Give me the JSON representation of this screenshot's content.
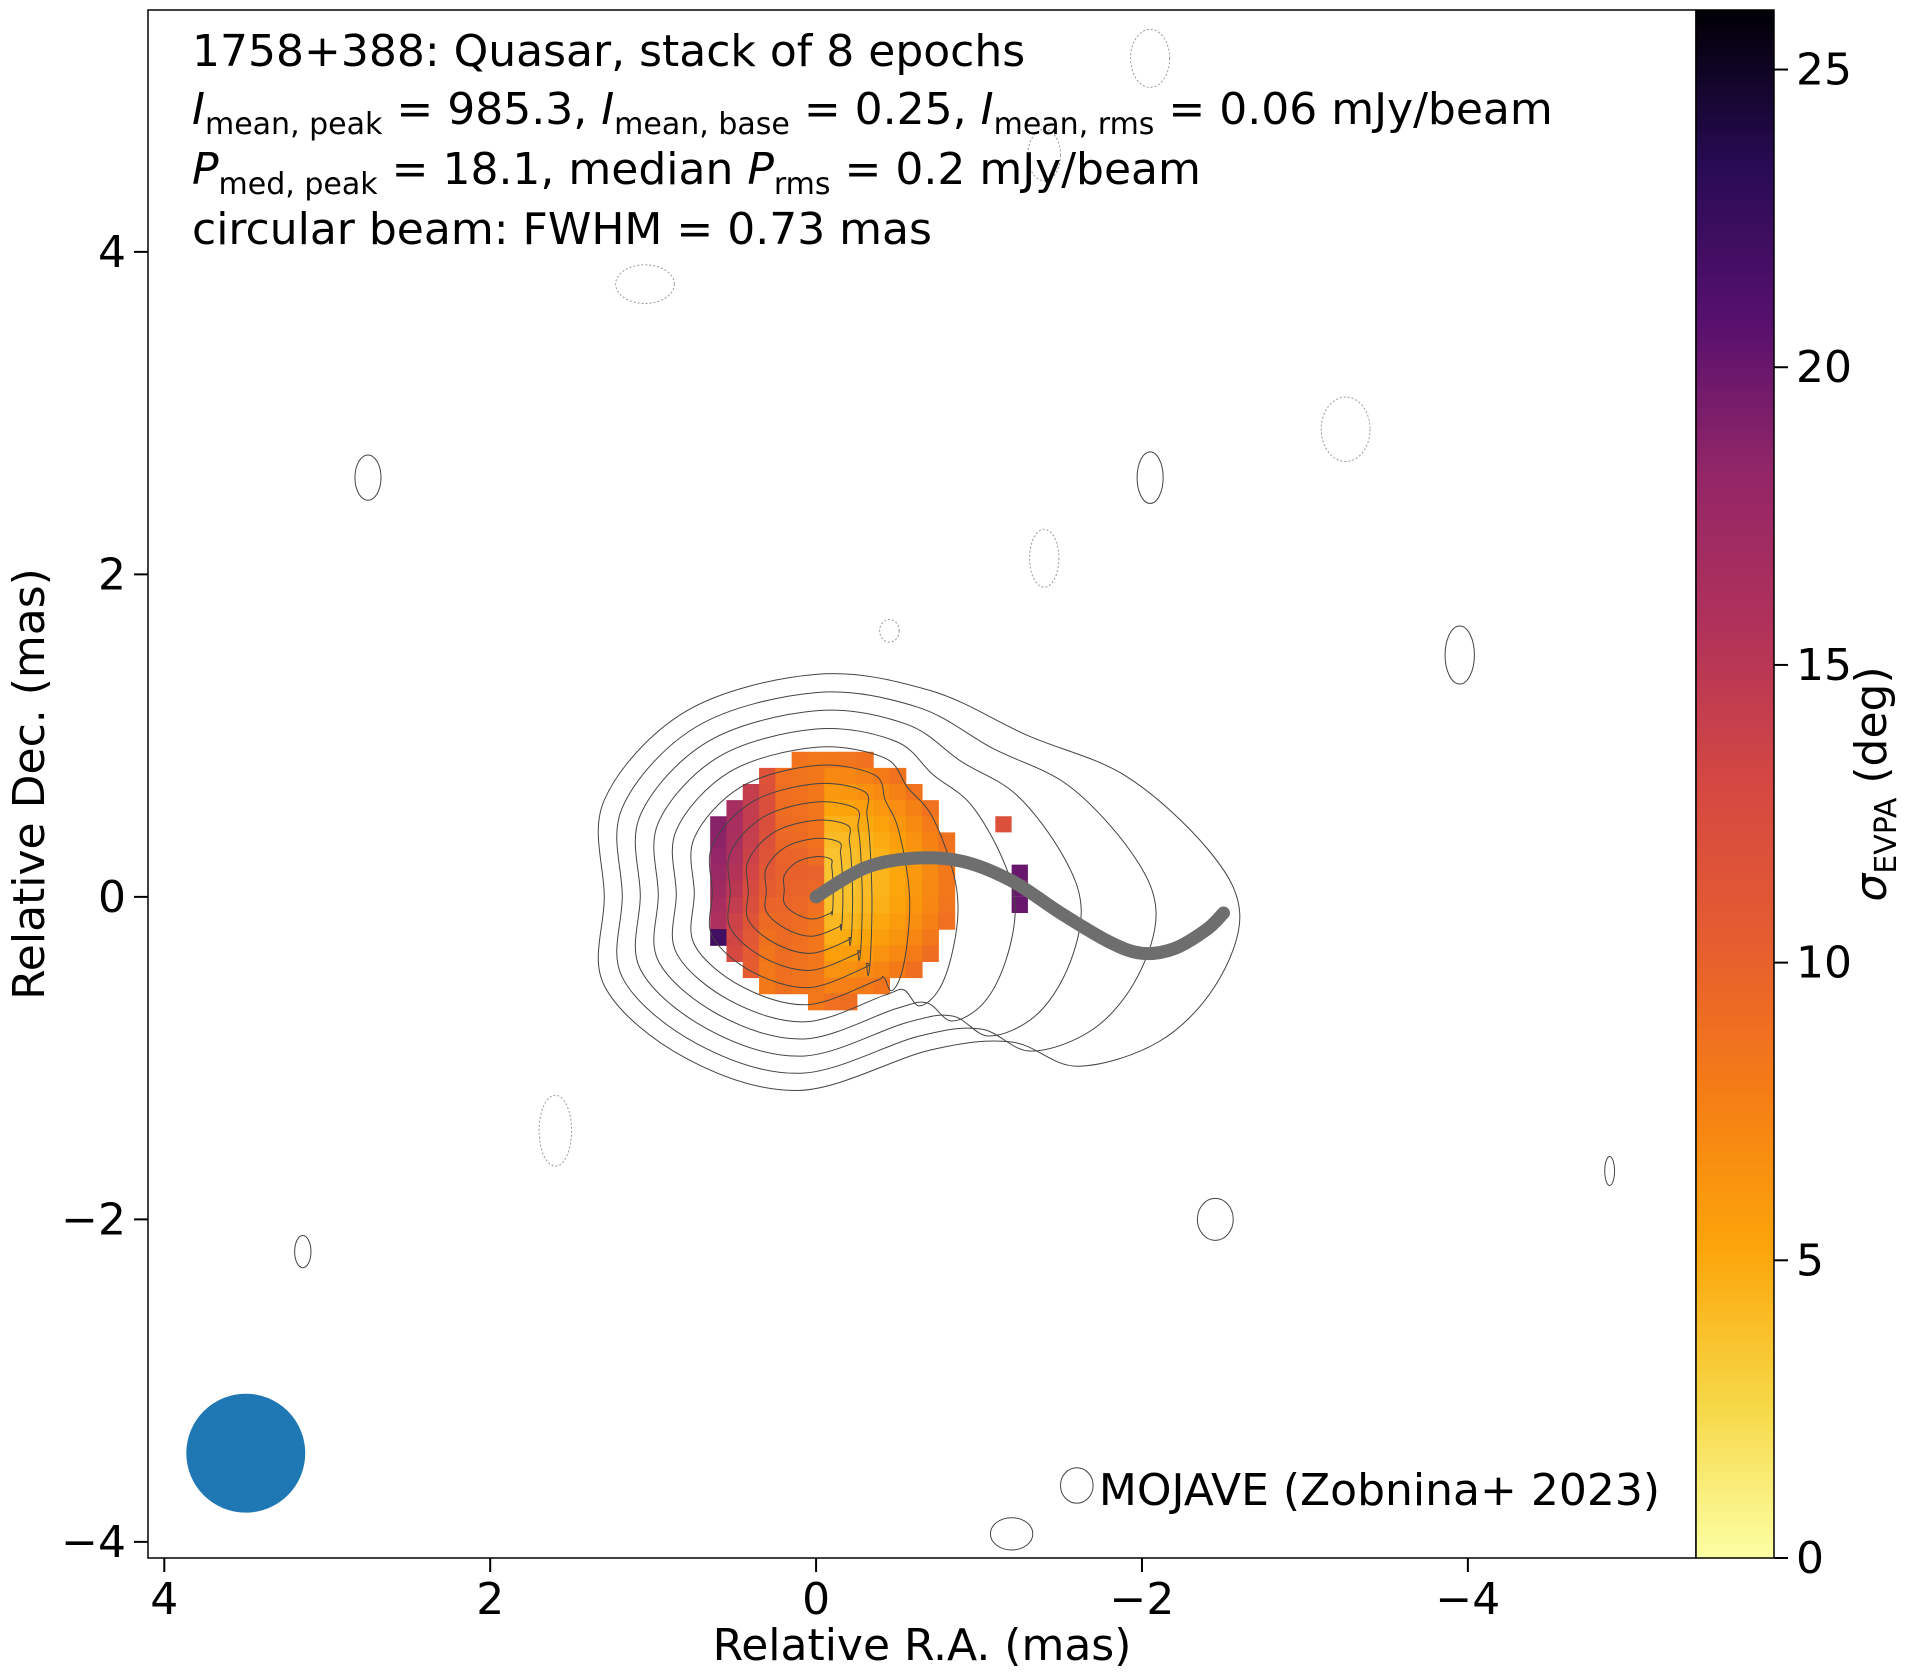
{
  "chart_data": {
    "type": "heatmap",
    "annotation_lines": [
      {
        "text": "1758+388: Quasar, stack of 8 epochs"
      },
      {
        "parts": [
          {
            "t": "I",
            "i": true
          },
          {
            "t": "mean, peak",
            "sub": true
          },
          {
            "t": " = 985.3, "
          },
          {
            "t": "I",
            "i": true
          },
          {
            "t": "mean, base",
            "sub": true
          },
          {
            "t": " = 0.25, "
          },
          {
            "t": "I",
            "i": true
          },
          {
            "t": "mean, rms",
            "sub": true
          },
          {
            "t": " = 0.06 mJy/beam"
          }
        ]
      },
      {
        "parts": [
          {
            "t": "P",
            "i": true
          },
          {
            "t": "med, peak",
            "sub": true
          },
          {
            "t": " = 18.1, median "
          },
          {
            "t": "P",
            "i": true
          },
          {
            "t": "rms",
            "sub": true
          },
          {
            "t": " = 0.2 mJy/beam"
          }
        ]
      },
      {
        "text": "circular beam: FWHM = 0.73 mas"
      }
    ],
    "credit": "MOJAVE (Zobnina+ 2023)",
    "xlabel": "Relative R.A. (mas)",
    "ylabel": "Relative Dec. (mas)",
    "x_axis_inverted": true,
    "xlim": [
      4.1,
      -5.4
    ],
    "ylim": [
      -4.1,
      5.5
    ],
    "xticks": [
      4,
      2,
      0,
      -2,
      -4
    ],
    "xtick_labels": [
      "4",
      "2",
      "0",
      "−2",
      "−4"
    ],
    "yticks": [
      4,
      2,
      0,
      -2,
      -4
    ],
    "ytick_labels": [
      "4",
      "2",
      "0",
      "−2",
      "−4"
    ],
    "colorbar": {
      "label_symbol": "σ",
      "label_sub": "EVPA",
      "label_unit": " (deg)",
      "range": [
        0,
        26
      ],
      "ticks": [
        0,
        5,
        10,
        15,
        20,
        25
      ],
      "tick_labels": [
        "0",
        "5",
        "10",
        "15",
        "20",
        "25"
      ],
      "colormap": "inferno_r"
    },
    "heatmap": {
      "pixel_size_mas": 0.1,
      "center_ra": -0.08,
      "center_dec": 0.12,
      "extent_mas": 0.78
    },
    "ridgeline": {
      "color": "#6e6e6e",
      "points": [
        [
          0,
          0
        ],
        [
          -0.3,
          0.18
        ],
        [
          -0.6,
          0.24
        ],
        [
          -0.9,
          0.22
        ],
        [
          -1.2,
          0.1
        ],
        [
          -1.5,
          -0.1
        ],
        [
          -1.8,
          -0.28
        ],
        [
          -2.0,
          -0.35
        ],
        [
          -2.2,
          -0.32
        ],
        [
          -2.4,
          -0.2
        ],
        [
          -2.5,
          -0.1
        ]
      ]
    },
    "beam": {
      "ra": 3.5,
      "dec": -3.45,
      "fwhm": 0.73,
      "color": "#1f77b4"
    },
    "contours": {
      "color": "#444444",
      "levels": 11,
      "outer": [
        [
          1.3,
          0.6
        ],
        [
          0.8,
          1.15
        ],
        [
          0,
          1.38
        ],
        [
          -0.7,
          1.28
        ],
        [
          -1.3,
          1.0
        ],
        [
          -1.9,
          0.75
        ],
        [
          -2.4,
          0.3
        ],
        [
          -2.6,
          -0.1
        ],
        [
          -2.45,
          -0.55
        ],
        [
          -2.1,
          -0.9
        ],
        [
          -1.6,
          -1.05
        ],
        [
          -1.2,
          -0.9
        ],
        [
          -0.7,
          -0.95
        ],
        [
          0.1,
          -1.2
        ],
        [
          0.8,
          -1.0
        ],
        [
          1.3,
          -0.55
        ],
        [
          1.3,
          0
        ]
      ],
      "islands": [
        {
          "ra": 2.75,
          "dec": 2.6,
          "rx": 0.08,
          "ry": 0.14,
          "dash": false
        },
        {
          "ra": 1.05,
          "dec": 3.8,
          "rx": 0.18,
          "ry": 0.12,
          "dash": true
        },
        {
          "ra": -2.05,
          "dec": 2.6,
          "rx": 0.08,
          "ry": 0.16,
          "dash": false
        },
        {
          "ra": -1.4,
          "dec": 4.6,
          "rx": 0.1,
          "ry": 0.16,
          "dash": true
        },
        {
          "ra": -3.25,
          "dec": 2.9,
          "rx": 0.15,
          "ry": 0.2,
          "dash": true
        },
        {
          "ra": -1.4,
          "dec": 2.1,
          "rx": 0.09,
          "ry": 0.18,
          "dash": true
        },
        {
          "ra": -0.45,
          "dec": 1.65,
          "rx": 0.06,
          "ry": 0.07,
          "dash": true
        },
        {
          "ra": -3.95,
          "dec": 1.5,
          "rx": 0.09,
          "ry": 0.18,
          "dash": false
        },
        {
          "ra": -2.05,
          "dec": 5.2,
          "rx": 0.12,
          "ry": 0.18,
          "dash": true
        },
        {
          "ra": 1.6,
          "dec": -1.45,
          "rx": 0.1,
          "ry": 0.22,
          "dash": true
        },
        {
          "ra": 3.15,
          "dec": -2.2,
          "rx": 0.05,
          "ry": 0.1,
          "dash": false
        },
        {
          "ra": -2.45,
          "dec": -2.0,
          "rx": 0.11,
          "ry": 0.13,
          "dash": false
        },
        {
          "ra": -4.87,
          "dec": -1.7,
          "rx": 0.03,
          "ry": 0.09,
          "dash": false
        },
        {
          "ra": -1.6,
          "dec": -3.65,
          "rx": 0.1,
          "ry": 0.11,
          "dash": false
        },
        {
          "ra": -1.2,
          "dec": -3.95,
          "rx": 0.13,
          "ry": 0.1,
          "dash": false
        }
      ]
    }
  }
}
